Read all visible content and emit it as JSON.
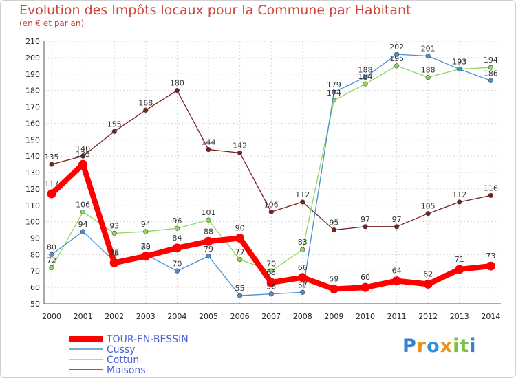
{
  "chart_data": {
    "type": "line",
    "title": "Evolution des Impôts locaux pour la Commune par Habitant",
    "subtitle": "(en € et par an)",
    "xlabel": "",
    "ylabel": "",
    "categories": [
      "2000",
      "2001",
      "2002",
      "2003",
      "2004",
      "2005",
      "2006",
      "2007",
      "2008",
      "2009",
      "2010",
      "2011",
      "2012",
      "2013",
      "2014"
    ],
    "ylim": [
      50,
      210
    ],
    "yticks": [
      50,
      60,
      70,
      80,
      90,
      100,
      110,
      120,
      130,
      140,
      150,
      160,
      170,
      180,
      190,
      200,
      210
    ],
    "grid": true,
    "legend_position": "bottom-left",
    "series": [
      {
        "name": "TOUR-EN-BESSIN",
        "color": "#ff0000",
        "values": [
          117,
          135,
          75,
          79,
          84,
          88,
          90,
          63,
          66,
          59,
          60,
          64,
          62,
          71,
          73
        ]
      },
      {
        "name": "Cussy",
        "color": "#4a8fd0",
        "values": [
          80,
          94,
          76,
          80,
          70,
          79,
          55,
          56,
          57,
          179,
          188,
          202,
          201,
          193,
          186
        ]
      },
      {
        "name": "Cottun",
        "color": "#8ed85c",
        "values": [
          72,
          106,
          93,
          94,
          96,
          101,
          77,
          70,
          83,
          174,
          184,
          195,
          188,
          193,
          194
        ]
      },
      {
        "name": "Maisons",
        "color": "#7a2020",
        "values": [
          135,
          140,
          155,
          168,
          180,
          144,
          142,
          106,
          112,
          95,
          97,
          97,
          105,
          112,
          116
        ]
      }
    ]
  },
  "logo": {
    "letters": [
      "P",
      "r",
      "o",
      "x",
      "i",
      "t",
      "i"
    ],
    "colors": [
      "#3a7fd0",
      "#e8931e",
      "#2e8fd4",
      "#e8931e",
      "#7ac143",
      "#7ac143",
      "#3a7fd0"
    ]
  }
}
